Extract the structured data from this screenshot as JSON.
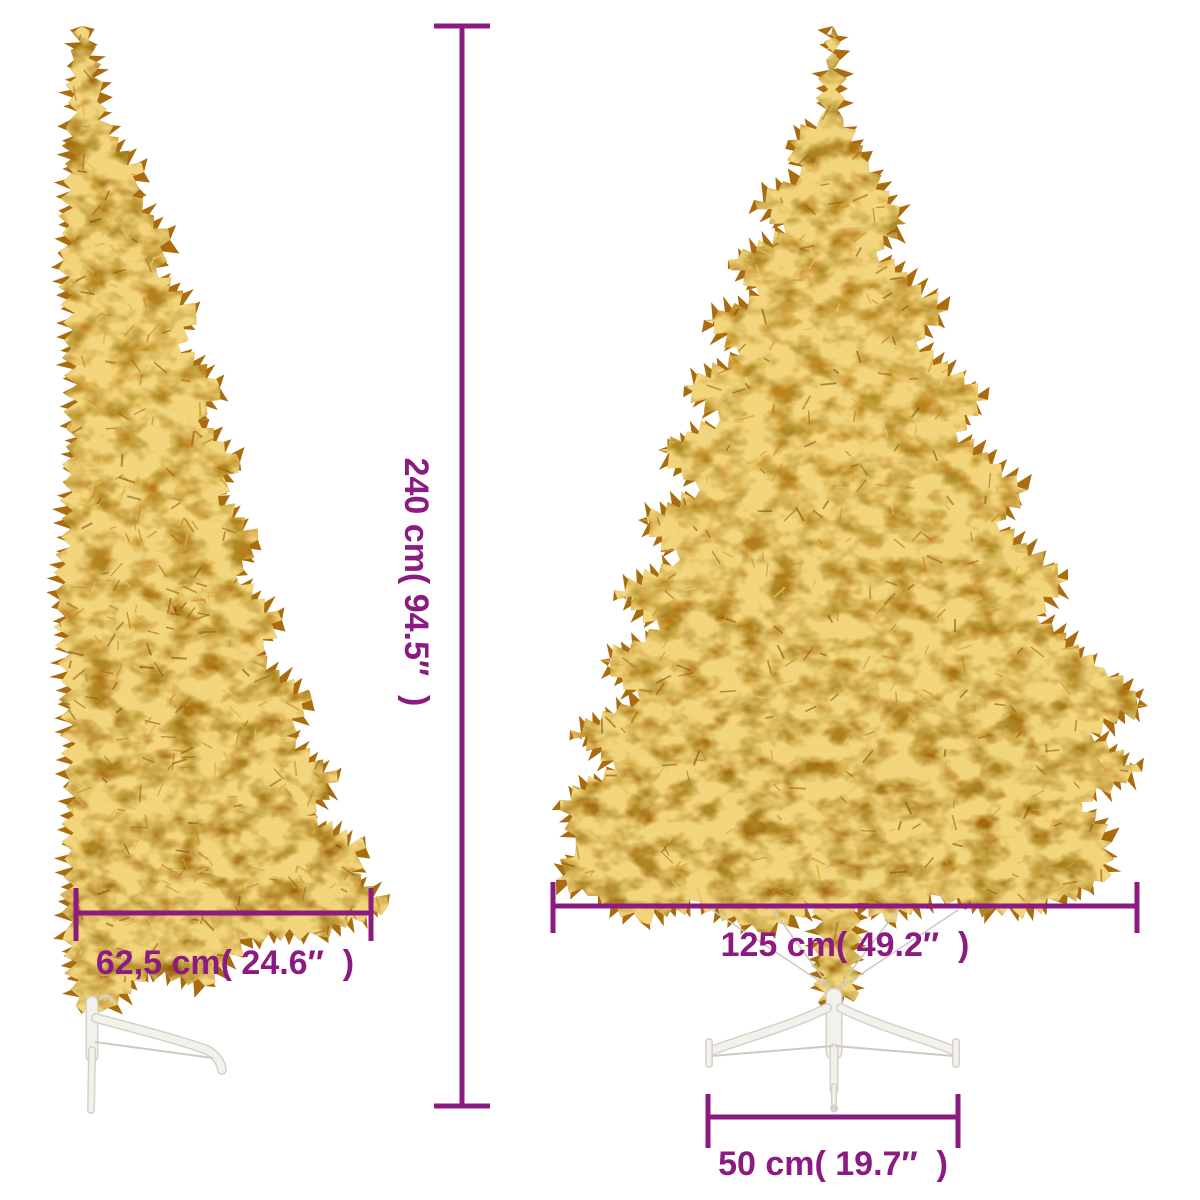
{
  "diagram": {
    "subject": "gold artificial half christmas tree with stand, side view and front view"
  },
  "colors": {
    "background": "#ffffff",
    "dimension": "#8b1b80",
    "gold_dark": "#9a5e09",
    "gold_mid": "#c5831a",
    "gold_deep": "#a96c0e",
    "gold_light": "#e0a62f",
    "gold_highlight": "#f3d074",
    "stand_fill": "#f3f1ec",
    "stand_outline": "#d6d2c8",
    "wire": "#cdc9c0"
  },
  "dimensions": {
    "height": "240 cm( 94.5″  )",
    "half_width": "62,5 cm( 24.6″  )",
    "full_width": "125 cm( 49.2″  )",
    "stand_width": "50 cm( 19.7″  )"
  }
}
